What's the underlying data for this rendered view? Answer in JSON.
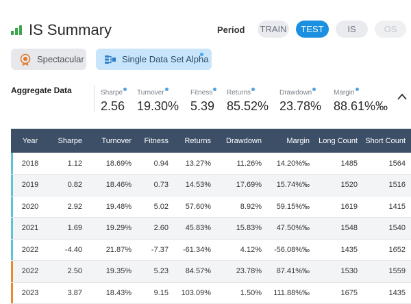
{
  "header": {
    "title": "IS Summary"
  },
  "period": {
    "label": "Period",
    "buttons": [
      "TRAIN",
      "TEST",
      "IS",
      "OS"
    ],
    "active": "TEST"
  },
  "badges": {
    "spectacular": "Spectacular",
    "single_data_set": "Single Data Set Alpha"
  },
  "aggregate": {
    "title": "Aggregate Data",
    "metrics": [
      {
        "label": "Sharpe",
        "value": "2.56"
      },
      {
        "label": "Turnover",
        "value": "19.30%"
      },
      {
        "label": "Fitness",
        "value": "5.39"
      },
      {
        "label": "Returns",
        "value": "85.52%"
      },
      {
        "label": "Drawdown",
        "value": "23.78%"
      },
      {
        "label": "Margin",
        "value": "88.61%‰"
      }
    ]
  },
  "table": {
    "columns": [
      "Year",
      "Sharpe",
      "Turnover",
      "Fitness",
      "Returns",
      "Drawdown",
      "Margin",
      "Long Count",
      "Short Count"
    ],
    "rows": [
      {
        "cells": [
          "2018",
          "1.12",
          "18.69%",
          "0.94",
          "13.27%",
          "11.26%",
          "14.20%‰",
          "1485",
          "1564"
        ],
        "segment": "train"
      },
      {
        "cells": [
          "2019",
          "0.82",
          "18.46%",
          "0.73",
          "14.53%",
          "17.69%",
          "15.74%‰",
          "1520",
          "1516"
        ],
        "segment": "train"
      },
      {
        "cells": [
          "2020",
          "2.92",
          "19.48%",
          "5.02",
          "57.60%",
          "8.92%",
          "59.15%‰",
          "1619",
          "1415"
        ],
        "segment": "train"
      },
      {
        "cells": [
          "2021",
          "1.69",
          "19.29%",
          "2.60",
          "45.83%",
          "15.83%",
          "47.50%‰",
          "1548",
          "1540"
        ],
        "segment": "train"
      },
      {
        "cells": [
          "2022",
          "-4.40",
          "21.87%",
          "-7.37",
          "-61.34%",
          "4.12%",
          "-56.08%‰",
          "1435",
          "1652"
        ],
        "segment": "train"
      },
      {
        "cells": [
          "2022",
          "2.50",
          "19.35%",
          "5.23",
          "84.57%",
          "23.78%",
          "87.41%‰",
          "1530",
          "1559"
        ],
        "segment": "test"
      },
      {
        "cells": [
          "2023",
          "3.87",
          "18.43%",
          "9.15",
          "103.09%",
          "1.50%",
          "111.88%‰",
          "1675",
          "1435"
        ],
        "segment": "test"
      }
    ]
  },
  "colors": {
    "accent": "#1b8fe0",
    "train_marker": "#5fc3d4",
    "test_marker": "#e98a2f",
    "header_bg": "#3d4f66"
  }
}
